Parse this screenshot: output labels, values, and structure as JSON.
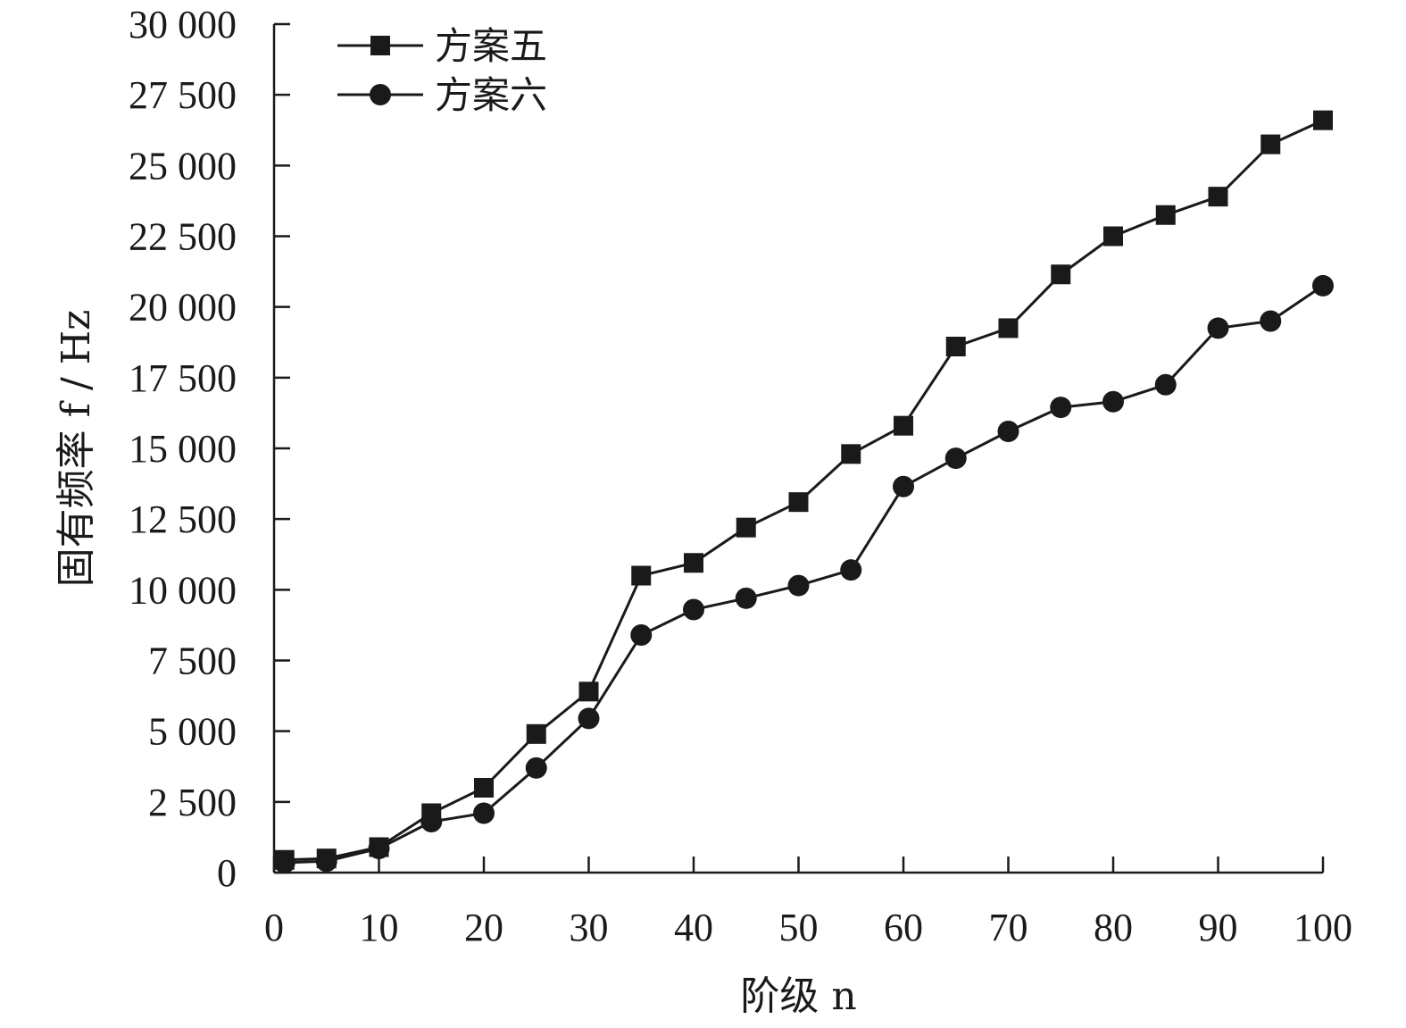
{
  "chart_data": {
    "type": "line",
    "title": "",
    "xlabel": "阶级 n",
    "ylabel": "固有频率 f / Hz",
    "xlim": [
      0,
      100
    ],
    "ylim": [
      0,
      30000
    ],
    "x_ticks": [
      0,
      10,
      20,
      30,
      40,
      50,
      60,
      70,
      80,
      90,
      100
    ],
    "x_tick_labels": [
      "0",
      "10",
      "20",
      "30",
      "40",
      "50",
      "60",
      "70",
      "80",
      "90",
      "100"
    ],
    "y_ticks": [
      0,
      2500,
      5000,
      7500,
      10000,
      12500,
      15000,
      17500,
      20000,
      22500,
      25000,
      27500,
      30000
    ],
    "y_tick_labels": [
      "0",
      "2 500",
      "5 000",
      "7 500",
      "10 000",
      "12 500",
      "15 000",
      "17 500",
      "20 000",
      "22 500",
      "25 000",
      "27 500",
      "30 000"
    ],
    "grid": false,
    "legend_position": "top-left",
    "series": [
      {
        "name": "方案五",
        "marker": "square",
        "x": [
          1,
          5,
          10,
          15,
          20,
          25,
          30,
          35,
          40,
          45,
          50,
          55,
          60,
          65,
          70,
          75,
          80,
          85,
          90,
          95,
          100
        ],
        "values": [
          450,
          500,
          900,
          2100,
          3000,
          4900,
          6400,
          10500,
          10950,
          12200,
          13100,
          14800,
          15800,
          18600,
          19250,
          21150,
          22500,
          23250,
          23900,
          25750,
          26600
        ]
      },
      {
        "name": "方案六",
        "marker": "circle",
        "x": [
          1,
          5,
          10,
          15,
          20,
          25,
          30,
          35,
          40,
          45,
          50,
          55,
          60,
          65,
          70,
          75,
          80,
          85,
          90,
          95,
          100
        ],
        "values": [
          350,
          400,
          850,
          1800,
          2100,
          3700,
          5450,
          8400,
          9300,
          9700,
          10150,
          10700,
          13650,
          14650,
          15600,
          16450,
          16650,
          17250,
          19250,
          19500,
          20750
        ]
      }
    ]
  },
  "colors": {
    "ink": "#1a1a1a",
    "background": "#ffffff"
  }
}
